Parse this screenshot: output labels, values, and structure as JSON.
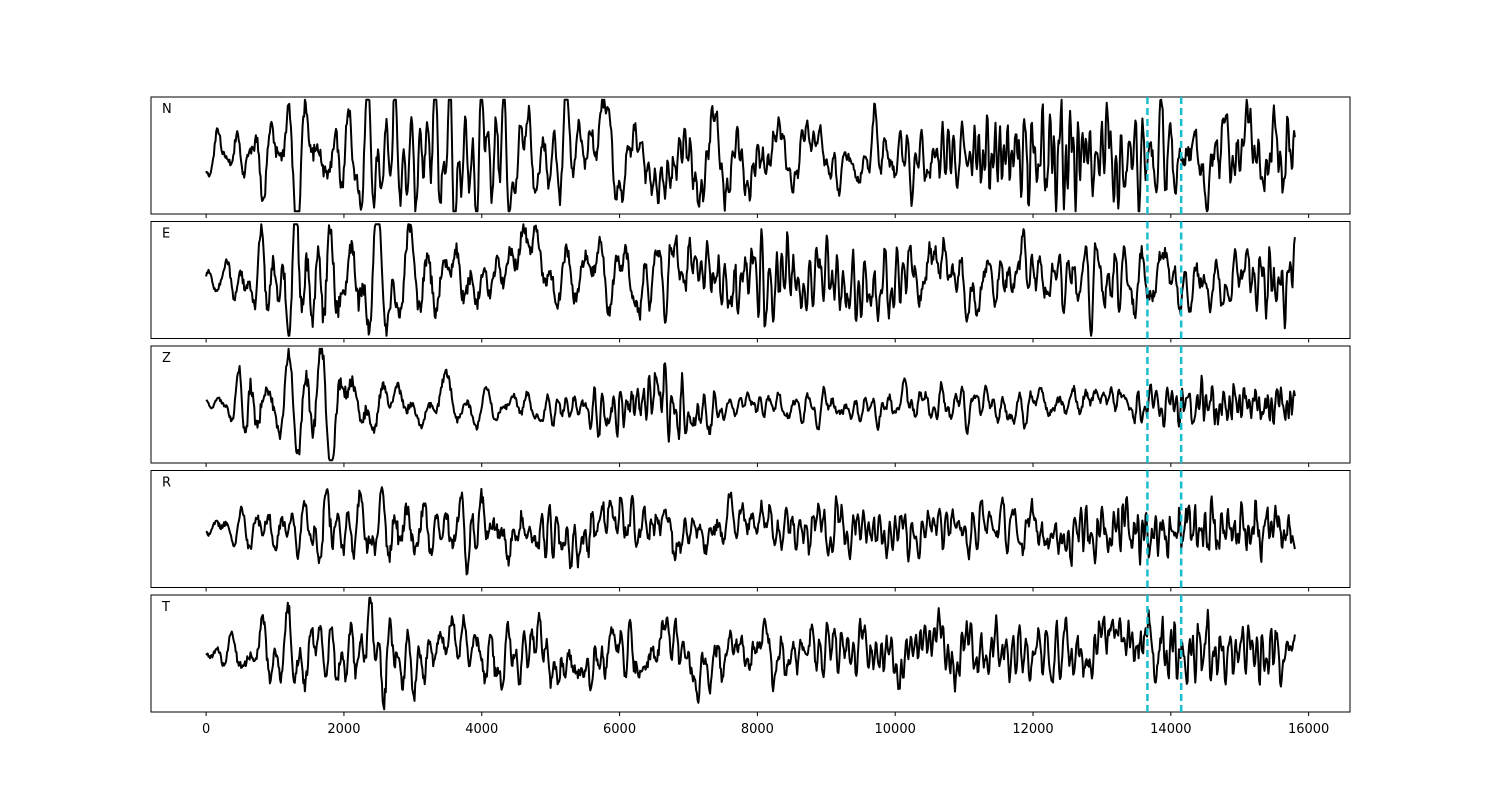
{
  "chart_data": {
    "type": "line",
    "layout": "stacked-panels",
    "xlim": [
      -800,
      16600
    ],
    "x_ticks": [
      0,
      2000,
      4000,
      6000,
      8000,
      10000,
      12000,
      14000,
      16000
    ],
    "x_tick_labels": [
      "0",
      "2000",
      "4000",
      "6000",
      "8000",
      "10000",
      "12000",
      "14000",
      "16000"
    ],
    "xlabel": "",
    "ylabel": "",
    "grid": false,
    "y_ticks_shown": false,
    "series_color": "#000000",
    "marker_color": "#17becf",
    "sample_count": 15800,
    "vertical_markers": [
      13660,
      14150
    ],
    "panels": [
      {
        "label": "N",
        "seed": 11,
        "ylim": [
          -1.1,
          1.1
        ],
        "envelope": [
          [
            0,
            0.12
          ],
          [
            150,
            0.2
          ],
          [
            400,
            0.3
          ],
          [
            700,
            0.4
          ],
          [
            1000,
            0.5
          ],
          [
            1400,
            0.55
          ],
          [
            1800,
            0.55
          ],
          [
            2400,
            0.5
          ],
          [
            3000,
            0.52
          ],
          [
            3500,
            0.62
          ],
          [
            4200,
            0.5
          ],
          [
            5000,
            0.45
          ],
          [
            6000,
            0.45
          ],
          [
            6500,
            0.5
          ],
          [
            7000,
            0.48
          ],
          [
            7500,
            0.45
          ],
          [
            8000,
            0.35
          ],
          [
            9000,
            0.3
          ],
          [
            10000,
            0.3
          ],
          [
            11000,
            0.3
          ],
          [
            11500,
            0.4
          ],
          [
            12000,
            0.45
          ],
          [
            12500,
            0.4
          ],
          [
            13000,
            0.45
          ],
          [
            13500,
            0.4
          ],
          [
            14000,
            0.6
          ],
          [
            14500,
            0.45
          ],
          [
            15000,
            0.45
          ],
          [
            15500,
            0.4
          ],
          [
            15800,
            0.3
          ]
        ]
      },
      {
        "label": "E",
        "seed": 23,
        "ylim": [
          -1.1,
          1.1
        ],
        "envelope": [
          [
            0,
            0.1
          ],
          [
            200,
            0.12
          ],
          [
            500,
            0.3
          ],
          [
            800,
            0.4
          ],
          [
            1200,
            0.6
          ],
          [
            1800,
            0.72
          ],
          [
            2200,
            0.65
          ],
          [
            2600,
            0.62
          ],
          [
            3000,
            0.55
          ],
          [
            3500,
            0.55
          ],
          [
            4200,
            0.5
          ],
          [
            5000,
            0.5
          ],
          [
            6000,
            0.5
          ],
          [
            7000,
            0.5
          ],
          [
            7500,
            0.55
          ],
          [
            8000,
            0.5
          ],
          [
            9000,
            0.4
          ],
          [
            10000,
            0.42
          ],
          [
            11000,
            0.4
          ],
          [
            12000,
            0.38
          ],
          [
            13000,
            0.42
          ],
          [
            14000,
            0.45
          ],
          [
            14500,
            0.45
          ],
          [
            15000,
            0.45
          ],
          [
            15500,
            0.5
          ],
          [
            15800,
            0.4
          ]
        ]
      },
      {
        "label": "Z",
        "seed": 37,
        "ylim": [
          -1.1,
          1.1
        ],
        "envelope": [
          [
            0,
            0.06
          ],
          [
            300,
            0.1
          ],
          [
            500,
            0.55
          ],
          [
            600,
            0.75
          ],
          [
            800,
            0.45
          ],
          [
            1200,
            0.45
          ],
          [
            1500,
            0.55
          ],
          [
            1800,
            0.5
          ],
          [
            2500,
            0.35
          ],
          [
            3000,
            0.25
          ],
          [
            3600,
            0.22
          ],
          [
            4200,
            0.2
          ],
          [
            5000,
            0.2
          ],
          [
            5400,
            0.2
          ],
          [
            5600,
            0.38
          ],
          [
            6000,
            0.42
          ],
          [
            6600,
            0.42
          ],
          [
            7200,
            0.35
          ],
          [
            7600,
            0.12
          ],
          [
            8000,
            0.15
          ],
          [
            9000,
            0.2
          ],
          [
            10000,
            0.2
          ],
          [
            11000,
            0.22
          ],
          [
            12000,
            0.22
          ],
          [
            13000,
            0.22
          ],
          [
            14000,
            0.2
          ],
          [
            14500,
            0.28
          ],
          [
            15000,
            0.22
          ],
          [
            15800,
            0.18
          ]
        ]
      },
      {
        "label": "R",
        "seed": 51,
        "ylim": [
          -1.1,
          1.1
        ],
        "envelope": [
          [
            0,
            0.1
          ],
          [
            300,
            0.2
          ],
          [
            700,
            0.3
          ],
          [
            1000,
            0.35
          ],
          [
            1500,
            0.45
          ],
          [
            1800,
            0.65
          ],
          [
            2200,
            0.5
          ],
          [
            2800,
            0.6
          ],
          [
            3500,
            0.5
          ],
          [
            4200,
            0.45
          ],
          [
            5000,
            0.42
          ],
          [
            6000,
            0.42
          ],
          [
            7000,
            0.42
          ],
          [
            8000,
            0.35
          ],
          [
            9000,
            0.35
          ],
          [
            10000,
            0.32
          ],
          [
            11000,
            0.3
          ],
          [
            12000,
            0.35
          ],
          [
            13000,
            0.35
          ],
          [
            13700,
            0.35
          ],
          [
            14000,
            0.3
          ],
          [
            14500,
            0.35
          ],
          [
            15000,
            0.4
          ],
          [
            15500,
            0.38
          ],
          [
            15800,
            0.3
          ]
        ]
      },
      {
        "label": "T",
        "seed": 67,
        "ylim": [
          -1.1,
          1.1
        ],
        "envelope": [
          [
            0,
            0.1
          ],
          [
            300,
            0.2
          ],
          [
            700,
            0.35
          ],
          [
            1000,
            0.45
          ],
          [
            1400,
            0.55
          ],
          [
            1800,
            0.5
          ],
          [
            2400,
            0.55
          ],
          [
            3000,
            0.5
          ],
          [
            3600,
            0.45
          ],
          [
            4200,
            0.42
          ],
          [
            5000,
            0.4
          ],
          [
            6000,
            0.42
          ],
          [
            6800,
            0.45
          ],
          [
            7500,
            0.4
          ],
          [
            8500,
            0.35
          ],
          [
            9500,
            0.35
          ],
          [
            10500,
            0.33
          ],
          [
            11500,
            0.33
          ],
          [
            12500,
            0.35
          ],
          [
            13500,
            0.38
          ],
          [
            14000,
            0.5
          ],
          [
            14500,
            0.42
          ],
          [
            15000,
            0.4
          ],
          [
            15400,
            0.45
          ],
          [
            15800,
            0.3
          ]
        ]
      }
    ]
  }
}
